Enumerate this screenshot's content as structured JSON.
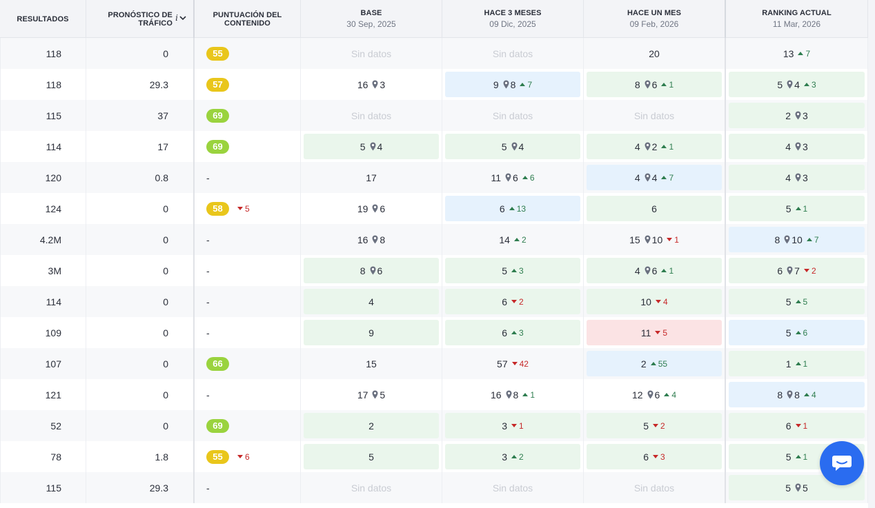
{
  "header": {
    "results": "RESULTADOS",
    "traffic": "PRONÓSTICO DE TRÁFICO",
    "traffic_info": "i",
    "score": "PUNTUACIÓN DEL CONTENIDO",
    "base": "BASE",
    "base_date": "30 Sep, 2025",
    "m3": "HACE 3 MESES",
    "m3_date": "09 Dic, 2025",
    "m1": "HACE UN MES",
    "m1_date": "09 Feb, 2026",
    "now": "RANKING ACTUAL",
    "now_date": "11 Mar, 2026"
  },
  "no_data_label": "Sin datos",
  "colors": {
    "green_bg": "#eaf6ec",
    "blue_bg": "#e6f2fd",
    "red_bg": "#fbe3e4",
    "badge_yellow": "#e9c61b",
    "badge_green": "#9ad33e",
    "chat_button": "#2a6cf0"
  },
  "rows": [
    {
      "results": "118",
      "traffic": "0",
      "score": {
        "value": "55",
        "color": "yellow"
      },
      "base": null,
      "m3": null,
      "m1": {
        "rank": "20"
      },
      "now": {
        "rank": "13",
        "change": {
          "dir": "up",
          "value": "7"
        }
      }
    },
    {
      "results": "118",
      "traffic": "29.3",
      "score": {
        "value": "57",
        "color": "yellow"
      },
      "base": {
        "rank": "16",
        "pin": "3"
      },
      "m3": {
        "rank": "9",
        "pin": "8",
        "change": {
          "dir": "up",
          "value": "7"
        },
        "bg": "blue"
      },
      "m1": {
        "rank": "8",
        "pin": "6",
        "change": {
          "dir": "up",
          "value": "1"
        },
        "bg": "green"
      },
      "now": {
        "rank": "5",
        "pin": "4",
        "change": {
          "dir": "up",
          "value": "3"
        },
        "bg": "green"
      }
    },
    {
      "results": "115",
      "traffic": "37",
      "score": {
        "value": "69",
        "color": "green"
      },
      "base": null,
      "m3": null,
      "m1": null,
      "now": {
        "rank": "2",
        "pin": "3",
        "bg": "green"
      }
    },
    {
      "results": "114",
      "traffic": "17",
      "score": {
        "value": "69",
        "color": "green"
      },
      "base": {
        "rank": "5",
        "pin": "4",
        "bg": "green"
      },
      "m3": {
        "rank": "5",
        "pin": "4",
        "bg": "green"
      },
      "m1": {
        "rank": "4",
        "pin": "2",
        "change": {
          "dir": "up",
          "value": "1"
        },
        "bg": "green"
      },
      "now": {
        "rank": "4",
        "pin": "3",
        "bg": "green"
      }
    },
    {
      "results": "120",
      "traffic": "0.8",
      "score": null,
      "base": {
        "rank": "17"
      },
      "m3": {
        "rank": "11",
        "pin": "6",
        "change": {
          "dir": "up",
          "value": "6"
        }
      },
      "m1": {
        "rank": "4",
        "pin": "4",
        "change": {
          "dir": "up",
          "value": "7"
        },
        "bg": "blue"
      },
      "now": {
        "rank": "4",
        "pin": "3",
        "bg": "green"
      }
    },
    {
      "results": "124",
      "traffic": "0",
      "score": {
        "value": "58",
        "color": "yellow",
        "change": {
          "dir": "down",
          "value": "5"
        }
      },
      "base": {
        "rank": "19",
        "pin": "6"
      },
      "m3": {
        "rank": "6",
        "change": {
          "dir": "up",
          "value": "13"
        },
        "bg": "blue"
      },
      "m1": {
        "rank": "6",
        "bg": "green"
      },
      "now": {
        "rank": "5",
        "change": {
          "dir": "up",
          "value": "1"
        },
        "bg": "green"
      }
    },
    {
      "results": "4.2M",
      "traffic": "0",
      "score": null,
      "base": {
        "rank": "16",
        "pin": "8"
      },
      "m3": {
        "rank": "14",
        "change": {
          "dir": "up",
          "value": "2"
        }
      },
      "m1": {
        "rank": "15",
        "pin": "10",
        "change": {
          "dir": "down",
          "value": "1"
        }
      },
      "now": {
        "rank": "8",
        "pin": "10",
        "change": {
          "dir": "up",
          "value": "7"
        },
        "bg": "blue"
      }
    },
    {
      "results": "3M",
      "traffic": "0",
      "score": null,
      "base": {
        "rank": "8",
        "pin": "6",
        "bg": "green"
      },
      "m3": {
        "rank": "5",
        "change": {
          "dir": "up",
          "value": "3"
        },
        "bg": "green"
      },
      "m1": {
        "rank": "4",
        "pin": "6",
        "change": {
          "dir": "up",
          "value": "1"
        },
        "bg": "green"
      },
      "now": {
        "rank": "6",
        "pin": "7",
        "change": {
          "dir": "down",
          "value": "2"
        },
        "bg": "green"
      }
    },
    {
      "results": "114",
      "traffic": "0",
      "score": null,
      "base": {
        "rank": "4",
        "bg": "green"
      },
      "m3": {
        "rank": "6",
        "change": {
          "dir": "down",
          "value": "2"
        },
        "bg": "green"
      },
      "m1": {
        "rank": "10",
        "change": {
          "dir": "down",
          "value": "4"
        },
        "bg": "green"
      },
      "now": {
        "rank": "5",
        "change": {
          "dir": "up",
          "value": "5"
        },
        "bg": "green"
      }
    },
    {
      "results": "109",
      "traffic": "0",
      "score": null,
      "base": {
        "rank": "9",
        "bg": "green"
      },
      "m3": {
        "rank": "6",
        "change": {
          "dir": "up",
          "value": "3"
        },
        "bg": "green"
      },
      "m1": {
        "rank": "11",
        "change": {
          "dir": "down",
          "value": "5"
        },
        "bg": "red"
      },
      "now": {
        "rank": "5",
        "change": {
          "dir": "up",
          "value": "6"
        },
        "bg": "blue"
      }
    },
    {
      "results": "107",
      "traffic": "0",
      "score": {
        "value": "66",
        "color": "green"
      },
      "base": {
        "rank": "15"
      },
      "m3": {
        "rank": "57",
        "change": {
          "dir": "down",
          "value": "42"
        }
      },
      "m1": {
        "rank": "2",
        "change": {
          "dir": "up",
          "value": "55"
        },
        "bg": "blue"
      },
      "now": {
        "rank": "1",
        "change": {
          "dir": "up",
          "value": "1"
        },
        "bg": "green"
      }
    },
    {
      "results": "121",
      "traffic": "0",
      "score": null,
      "base": {
        "rank": "17",
        "pin": "5"
      },
      "m3": {
        "rank": "16",
        "pin": "8",
        "change": {
          "dir": "up",
          "value": "1"
        }
      },
      "m1": {
        "rank": "12",
        "pin": "6",
        "change": {
          "dir": "up",
          "value": "4"
        }
      },
      "now": {
        "rank": "8",
        "pin": "8",
        "change": {
          "dir": "up",
          "value": "4"
        },
        "bg": "blue"
      }
    },
    {
      "results": "52",
      "traffic": "0",
      "score": {
        "value": "69",
        "color": "green"
      },
      "base": {
        "rank": "2",
        "bg": "green"
      },
      "m3": {
        "rank": "3",
        "change": {
          "dir": "down",
          "value": "1"
        },
        "bg": "green"
      },
      "m1": {
        "rank": "5",
        "change": {
          "dir": "down",
          "value": "2"
        },
        "bg": "green"
      },
      "now": {
        "rank": "6",
        "change": {
          "dir": "down",
          "value": "1"
        },
        "bg": "green"
      }
    },
    {
      "results": "78",
      "traffic": "1.8",
      "score": {
        "value": "55",
        "color": "yellow",
        "change": {
          "dir": "down",
          "value": "6"
        }
      },
      "base": {
        "rank": "5",
        "bg": "green"
      },
      "m3": {
        "rank": "3",
        "change": {
          "dir": "up",
          "value": "2"
        },
        "bg": "green"
      },
      "m1": {
        "rank": "6",
        "change": {
          "dir": "down",
          "value": "3"
        },
        "bg": "green"
      },
      "now": {
        "rank": "5",
        "change": {
          "dir": "up",
          "value": "1"
        },
        "bg": "green"
      }
    },
    {
      "results": "115",
      "traffic": "29.3",
      "score": null,
      "base": null,
      "m3": null,
      "m1": null,
      "now": {
        "rank": "5",
        "pin": "5",
        "bg": "green"
      }
    }
  ],
  "score_empty": "-",
  "chat_button_icon": "chat-bubble-icon"
}
